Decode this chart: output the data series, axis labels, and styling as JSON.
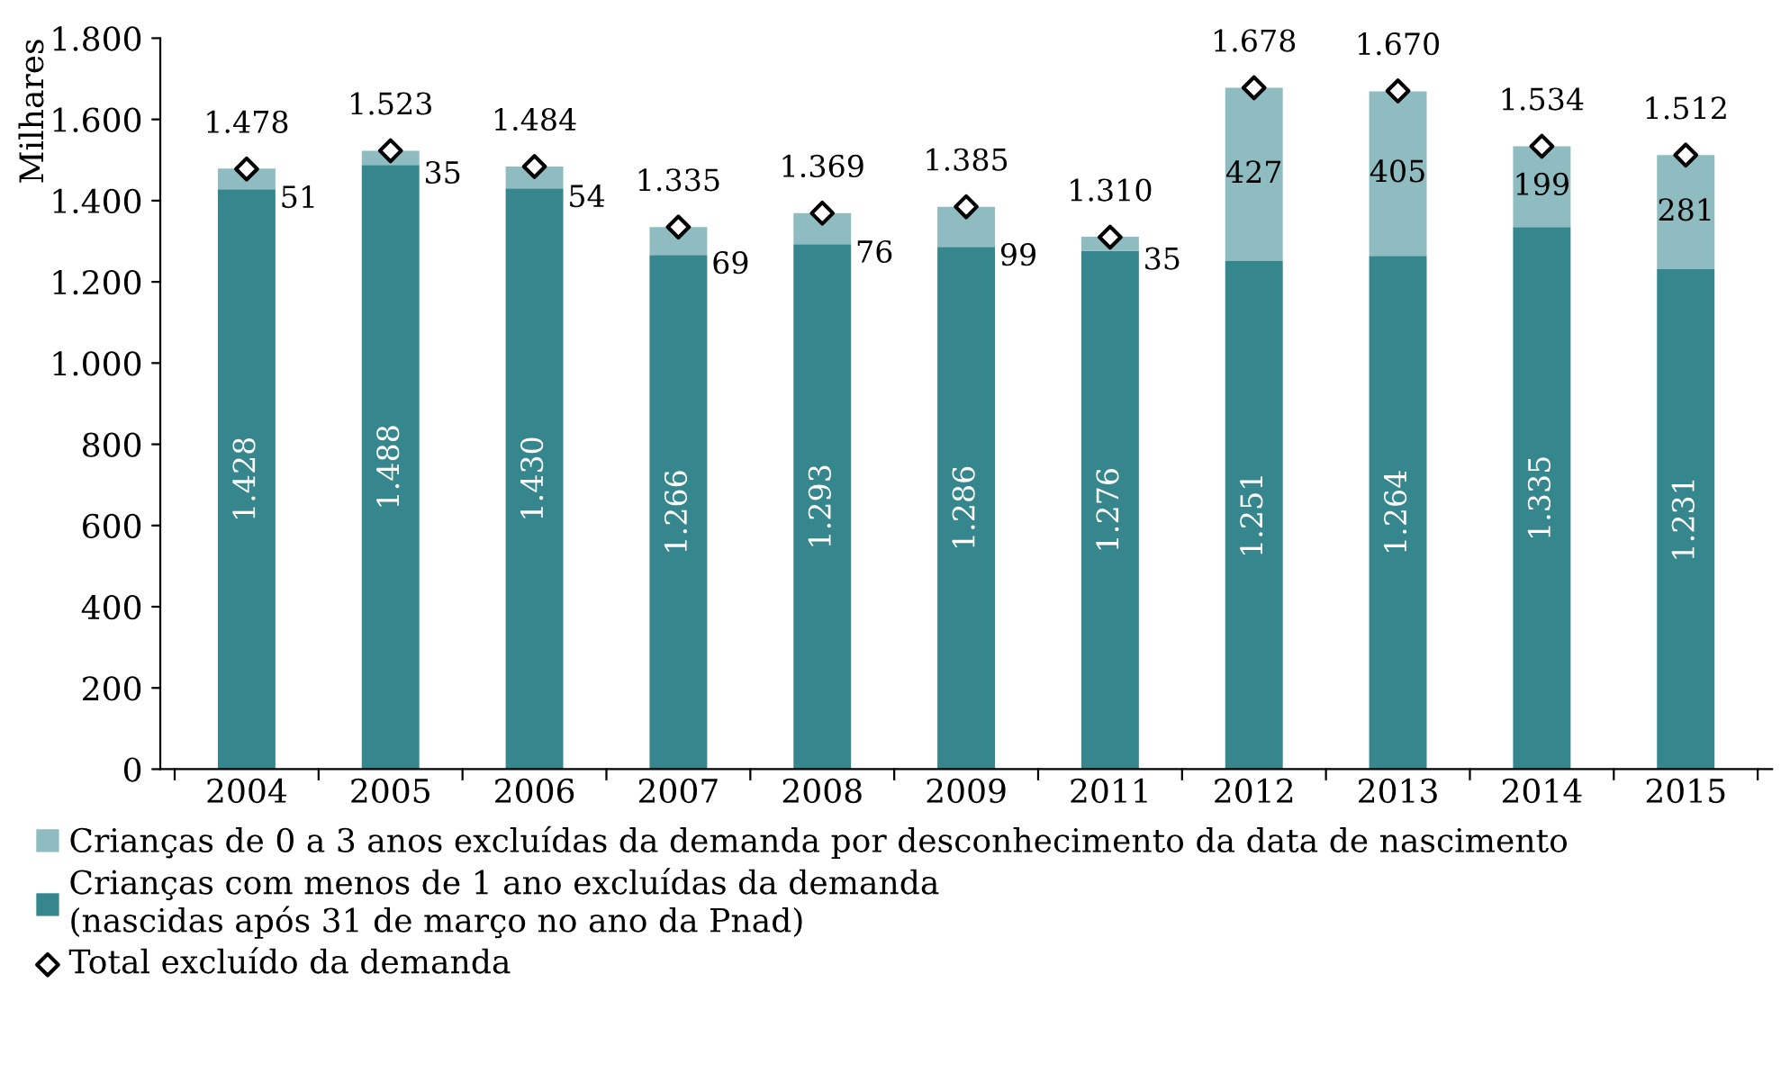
{
  "chart_data": {
    "type": "bar",
    "stacked": true,
    "ylabel": "Milhares",
    "categories": [
      "2004",
      "2005",
      "2006",
      "2007",
      "2008",
      "2009",
      "2011",
      "2012",
      "2013",
      "2014",
      "2015"
    ],
    "ylim": [
      0,
      1800
    ],
    "yticks": [
      0,
      200,
      400,
      600,
      800,
      {
        "value": 1000,
        "label": "1.000"
      },
      {
        "value": 1200,
        "label": "1.200"
      },
      {
        "value": 1400,
        "label": "1.400"
      },
      {
        "value": 1600,
        "label": "1.600"
      },
      {
        "value": 1800,
        "label": "1.800"
      }
    ],
    "series": [
      {
        "name": "Crianças com menos de 1 ano excluídas da demanda\n(nascidas após 31 de março no ano da Pnad)",
        "color": "#36868d",
        "values": [
          1428,
          1488,
          1430,
          1266,
          1293,
          1286,
          1276,
          1251,
          1264,
          1335,
          1231
        ],
        "value_labels": [
          "1.428",
          "1.488",
          "1.430",
          "1.266",
          "1.293",
          "1.286",
          "1.276",
          "1.251",
          "1.264",
          "1.335",
          "1.231"
        ]
      },
      {
        "name": "Crianças de 0 a 3 anos excluídas da demanda por desconhecimento da data de nascimento",
        "color": "#8fbcc0",
        "values": [
          51,
          35,
          54,
          69,
          76,
          99,
          35,
          427,
          405,
          199,
          281
        ],
        "value_labels": [
          "51",
          "35",
          "54",
          "69",
          "76",
          "99",
          "35",
          "427",
          "405",
          "199",
          "281"
        ]
      },
      {
        "name": "Total excluído da demanda",
        "type": "scatter",
        "marker": "diamond",
        "color": "#000000",
        "values": [
          1478,
          1523,
          1484,
          1335,
          1369,
          1385,
          1310,
          1678,
          1670,
          1534,
          1512
        ],
        "value_labels": [
          "1.478",
          "1.523",
          "1.484",
          "1.335",
          "1.369",
          "1.385",
          "1.310",
          "1.678",
          "1.670",
          "1.534",
          "1.512"
        ]
      }
    ],
    "legend": "bottom",
    "grid": false
  }
}
